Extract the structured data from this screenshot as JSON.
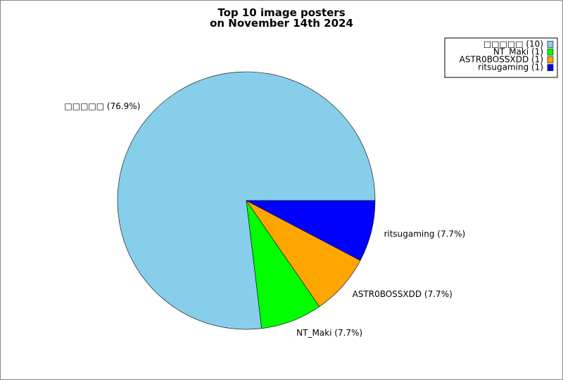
{
  "chart_data": {
    "type": "pie",
    "title": "Top 10 image posters\non November 14th 2024",
    "categories": [
      "□□□□□ (10)",
      "NT_Maki (1)",
      "ASTR0BOSSXDD (1)",
      "ritsugaming (1)"
    ],
    "values": [
      76.9,
      7.7,
      7.7,
      7.7
    ],
    "value_labels": [
      "□□□□□ (76.9%)",
      "NT_Maki (7.7%)",
      "ASTR0BOSSXDD (7.7%)",
      "ritsugaming (7.7%)"
    ],
    "colors": [
      "#87ceeb",
      "#00ff00",
      "#ffa500",
      "#0000ff"
    ],
    "legend": "upper right"
  }
}
